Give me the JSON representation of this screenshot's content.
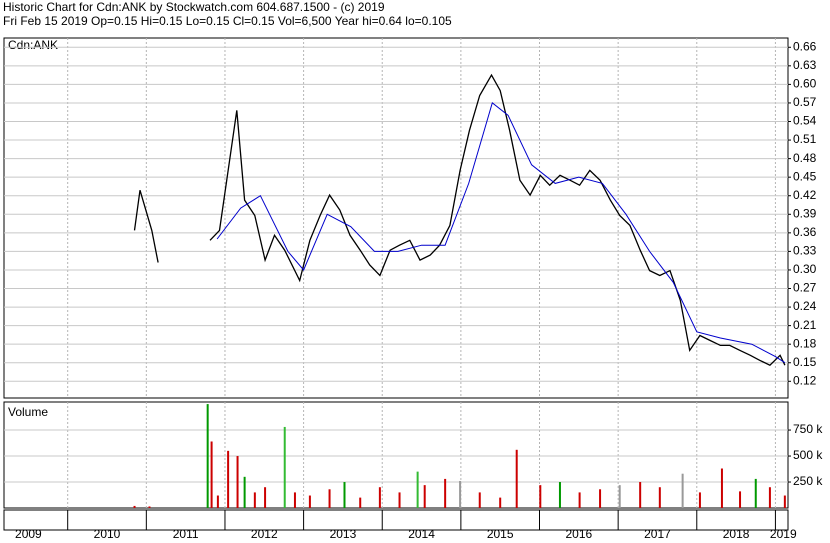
{
  "header": {
    "line1": "Historic Chart for Cdn:ANK by Stockwatch.com 604.687.1500 - (c) 2019",
    "line2": "Fri Feb 15 2019  Op=0.15  Hi=0.15  Lo=0.15  Cl=0.15  Vol=6,500  Year hi=0.64  lo=0.105"
  },
  "chart_data": [
    {
      "type": "line",
      "title": "Cdn:ANK",
      "xlim": [
        2009.19,
        2019.16
      ],
      "xticks": [
        {
          "value": 2009.5,
          "label": "2009"
        },
        {
          "value": 2010.5,
          "label": "2010"
        },
        {
          "value": 2011.5,
          "label": "2011"
        },
        {
          "value": 2012.5,
          "label": "2012"
        },
        {
          "value": 2013.5,
          "label": "2013"
        },
        {
          "value": 2014.5,
          "label": "2014"
        },
        {
          "value": 2015.5,
          "label": "2015"
        },
        {
          "value": 2016.5,
          "label": "2016"
        },
        {
          "value": 2017.5,
          "label": "2017"
        },
        {
          "value": 2018.5,
          "label": "2018"
        },
        {
          "value": 2019.1,
          "label": "2019"
        }
      ],
      "x_gridlines": [
        2010,
        2011,
        2012,
        2013,
        2014,
        2015,
        2016,
        2017,
        2018,
        2019
      ],
      "ylim": [
        0.093,
        0.675
      ],
      "yticks": [
        0.12,
        0.15,
        0.18,
        0.21,
        0.24,
        0.27,
        {
          "value": 0.3,
          "label": "0.30"
        },
        0.33,
        0.36,
        0.39,
        0.42,
        0.45,
        0.48,
        0.51,
        0.54,
        0.57,
        {
          "value": 0.6,
          "label": "0.60"
        },
        0.63,
        0.66
      ],
      "grid": true,
      "series": [
        {
          "color": "#000000",
          "x": [
            2010.85,
            2010.92,
            2011.07,
            2011.15,
            2011.5,
            2011.81,
            2011.93,
            2012.15,
            2012.25,
            2012.38,
            2012.51,
            2012.63,
            2012.76,
            2012.95,
            2013.08,
            2013.21,
            2013.33,
            2013.46,
            2013.59,
            2013.72,
            2013.84,
            2013.97,
            2014.1,
            2014.22,
            2014.35,
            2014.48,
            2014.61,
            2014.73,
            2014.86,
            2014.99,
            2015.11,
            2015.24,
            2015.39,
            2015.5,
            2015.62,
            2015.75,
            2015.88,
            2016.01,
            2016.13,
            2016.26,
            2016.39,
            2016.51,
            2016.64,
            2016.77,
            2016.9,
            2017.02,
            2017.15,
            2017.28,
            2017.4,
            2017.53,
            2017.66,
            2017.79,
            2017.91,
            2018.04,
            2018.17,
            2018.3,
            2018.42,
            2018.55,
            2018.68,
            2018.8,
            2018.93,
            2019.06,
            2019.12
          ],
          "values": [
            0.364,
            0.429,
            0.364,
            0.312,
            null,
            0.348,
            0.364,
            0.558,
            0.413,
            0.388,
            0.316,
            0.356,
            0.332,
            0.283,
            0.348,
            0.388,
            0.421,
            0.397,
            0.356,
            0.332,
            0.308,
            0.291,
            0.332,
            0.34,
            0.348,
            0.316,
            0.324,
            0.34,
            0.372,
            0.461,
            0.526,
            0.582,
            0.615,
            0.59,
            0.526,
            0.445,
            0.421,
            0.453,
            0.437,
            0.453,
            0.445,
            0.437,
            0.461,
            0.445,
            0.413,
            0.388,
            0.372,
            0.332,
            0.299,
            0.291,
            0.299,
            0.251,
            0.17,
            0.194,
            0.186,
            0.178,
            0.178,
            0.17,
            0.162,
            0.154,
            0.146,
            0.162,
            0.146
          ]
        },
        {
          "color": "#0000cc",
          "x": [
            2011.9,
            2012.2,
            2012.45,
            2012.8,
            2013.0,
            2013.3,
            2013.6,
            2013.9,
            2014.2,
            2014.5,
            2014.8,
            2015.1,
            2015.4,
            2015.6,
            2015.9,
            2016.2,
            2016.5,
            2016.8,
            2017.1,
            2017.4,
            2017.7,
            2018.0,
            2018.3,
            2018.7,
            2019.0,
            2019.12
          ],
          "values": [
            0.35,
            0.4,
            0.42,
            0.33,
            0.3,
            0.39,
            0.37,
            0.33,
            0.33,
            0.34,
            0.34,
            0.44,
            0.57,
            0.55,
            0.47,
            0.44,
            0.45,
            0.44,
            0.39,
            0.33,
            0.28,
            0.2,
            0.19,
            0.18,
            0.16,
            0.15
          ]
        }
      ]
    },
    {
      "type": "bar",
      "title": "Volume",
      "xlim": [
        2009.19,
        2019.16
      ],
      "ylim": [
        0,
        1020000
      ],
      "yticks": [
        {
          "value": 250000,
          "label": "250 k"
        },
        {
          "value": 500000,
          "label": "500 k"
        },
        {
          "value": 750000,
          "label": "750 k"
        }
      ],
      "grid": true,
      "x": [
        2010.85,
        2011.04,
        2011.78,
        2011.83,
        2011.91,
        2012.04,
        2012.16,
        2012.25,
        2012.38,
        2012.51,
        2012.76,
        2012.89,
        2013.08,
        2013.33,
        2013.52,
        2013.72,
        2013.97,
        2014.22,
        2014.45,
        2014.54,
        2014.8,
        2014.99,
        2015.24,
        2015.5,
        2015.71,
        2016.01,
        2016.26,
        2016.51,
        2016.77,
        2017.02,
        2017.28,
        2017.53,
        2017.82,
        2018.04,
        2018.32,
        2018.55,
        2018.75,
        2018.93,
        2019.12
      ],
      "values": [
        20000,
        15000,
        1000000,
        640000,
        120000,
        550000,
        500000,
        300000,
        150000,
        200000,
        780000,
        150000,
        120000,
        180000,
        250000,
        100000,
        200000,
        150000,
        350000,
        220000,
        280000,
        260000,
        150000,
        100000,
        560000,
        220000,
        250000,
        150000,
        180000,
        220000,
        250000,
        200000,
        330000,
        150000,
        380000,
        160000,
        280000,
        200000,
        120000
      ],
      "colors": [
        "#cc0000",
        "#cc0000",
        "#009900",
        "#cc0000",
        "#cc0000",
        "#cc0000",
        "#cc0000",
        "#009900",
        "#cc0000",
        "#cc0000",
        "#33bb33",
        "#cc0000",
        "#cc0000",
        "#cc0000",
        "#009900",
        "#cc0000",
        "#cc0000",
        "#cc0000",
        "#33bb33",
        "#cc0000",
        "#cc0000",
        "#999999",
        "#cc0000",
        "#cc0000",
        "#cc0000",
        "#cc0000",
        "#009900",
        "#cc0000",
        "#cc0000",
        "#999999",
        "#cc0000",
        "#cc0000",
        "#999999",
        "#cc0000",
        "#cc0000",
        "#cc0000",
        "#009900",
        "#cc0000",
        "#cc0000"
      ]
    }
  ]
}
